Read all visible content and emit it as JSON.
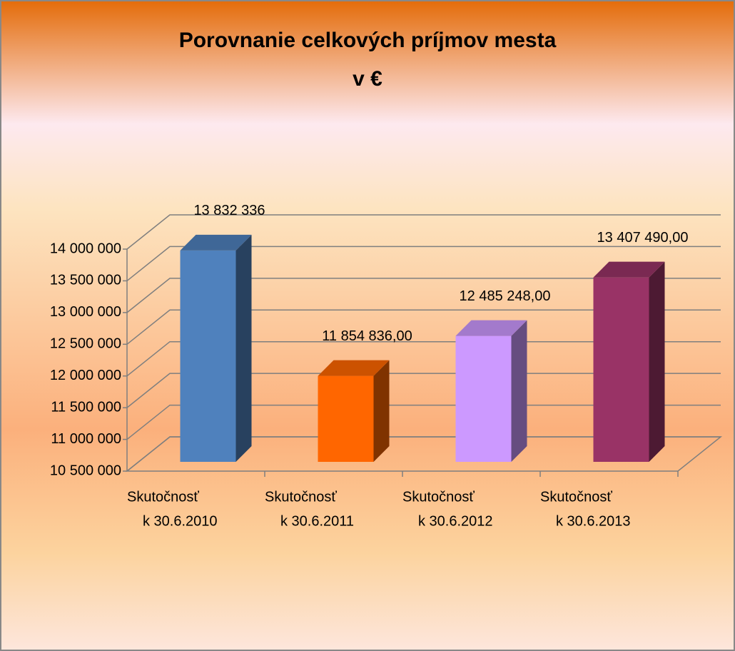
{
  "chart_data": {
    "type": "bar3d",
    "title": "Porovnanie celkových  príjmov mesta",
    "subtitle": "v  €",
    "categories": [
      [
        "Skutočnosť",
        "k 30.6.2010"
      ],
      [
        "Skutočnosť",
        "k 30.6.2011"
      ],
      [
        "Skutočnosť",
        "k 30.6.2012"
      ],
      [
        "Skutočnosť",
        "k 30.6.2013"
      ]
    ],
    "values": [
      13832336,
      11854836,
      12485248,
      13407490
    ],
    "value_labels": [
      "13 832 336",
      "11 854 836,00",
      "12 485 248,00",
      "13 407 490,00"
    ],
    "colors": [
      "#4f81bd",
      "#ff6600",
      "#cc99ff",
      "#993366"
    ],
    "ylim": [
      10500000,
      14000000
    ],
    "yticks": [
      {
        "value": 10500000,
        "label": "10 500 000"
      },
      {
        "value": 11000000,
        "label": "11 000 000"
      },
      {
        "value": 11500000,
        "label": "11 500 000"
      },
      {
        "value": 12000000,
        "label": "12 000 000"
      },
      {
        "value": 12500000,
        "label": "12 500 000"
      },
      {
        "value": 13000000,
        "label": "13 000 000"
      },
      {
        "value": 13500000,
        "label": "13 500 000"
      },
      {
        "value": 14000000,
        "label": "14 000 000"
      }
    ],
    "grid": true
  }
}
